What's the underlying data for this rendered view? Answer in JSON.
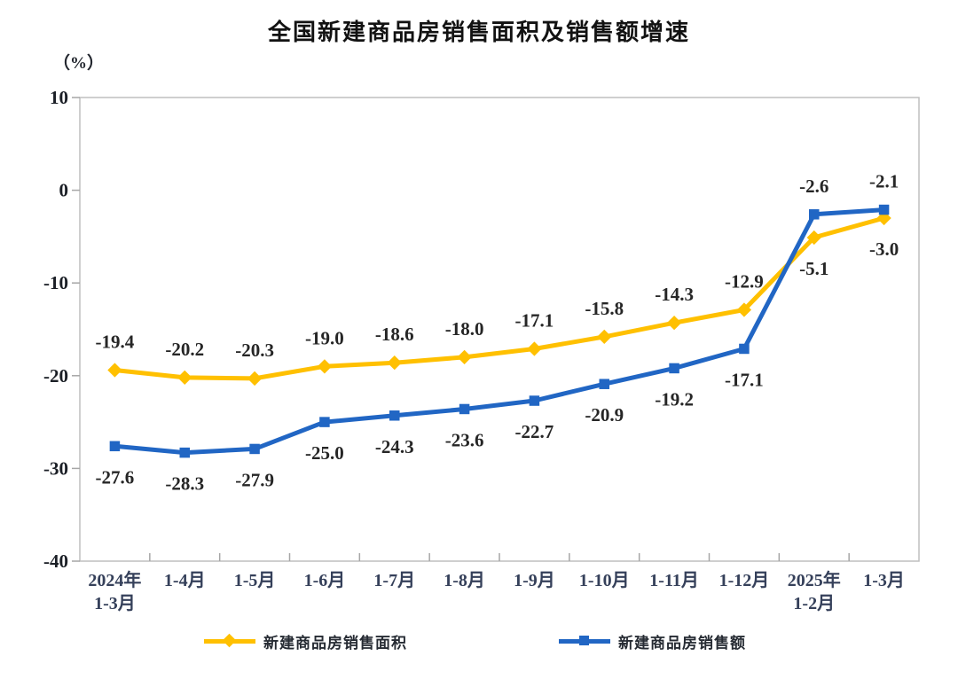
{
  "header": {
    "title": "全国新建商品房销售面积及销售额增速",
    "unit_label": "（%）"
  },
  "colors": {
    "series_area": "#FFC000",
    "series_amount": "#2166C4",
    "axis_border": "#BFBFBF",
    "tick": "#A6A6A6",
    "data_label_text": "#262626",
    "axis_label_text": "#35405A",
    "y_label_text": "#1B1F26"
  },
  "chart_data": {
    "type": "line",
    "title": "全国新建商品房销售面积及销售额增速",
    "unit": "（%）",
    "xlabel": "",
    "ylabel": "%",
    "grid": false,
    "legend_position": "bottom",
    "categories": [
      "2024年\n1-3月",
      "1-4月",
      "1-5月",
      "1-6月",
      "1-7月",
      "1-8月",
      "1-9月",
      "1-10月",
      "1-11月",
      "1-12月",
      "2025年\n1-2月",
      "1-3月"
    ],
    "y_axis": {
      "min": -40,
      "max": 10,
      "tick_step": 10,
      "ticks": [
        10,
        0,
        -10,
        -20,
        -30,
        -40
      ]
    },
    "series": [
      {
        "name": "新建商品房销售面积",
        "color": "#FFC000",
        "marker": "diamond",
        "values": [
          -19.4,
          -20.2,
          -20.3,
          -19.0,
          -18.6,
          -18.0,
          -17.1,
          -15.8,
          -14.3,
          -12.9,
          -5.1,
          -3.0
        ],
        "label_sides": [
          "above",
          "above",
          "above",
          "above",
          "above",
          "above",
          "above",
          "above",
          "above",
          "above",
          "below",
          "below"
        ]
      },
      {
        "name": "新建商品房销售额",
        "color": "#2166C4",
        "marker": "square",
        "values": [
          -27.6,
          -28.3,
          -27.9,
          -25.0,
          -24.3,
          -23.6,
          -22.7,
          -20.9,
          -19.2,
          -17.1,
          -2.6,
          -2.1
        ],
        "label_sides": [
          "below",
          "below",
          "below",
          "below",
          "below",
          "below",
          "below",
          "below",
          "below",
          "below",
          "above",
          "above"
        ]
      }
    ]
  }
}
